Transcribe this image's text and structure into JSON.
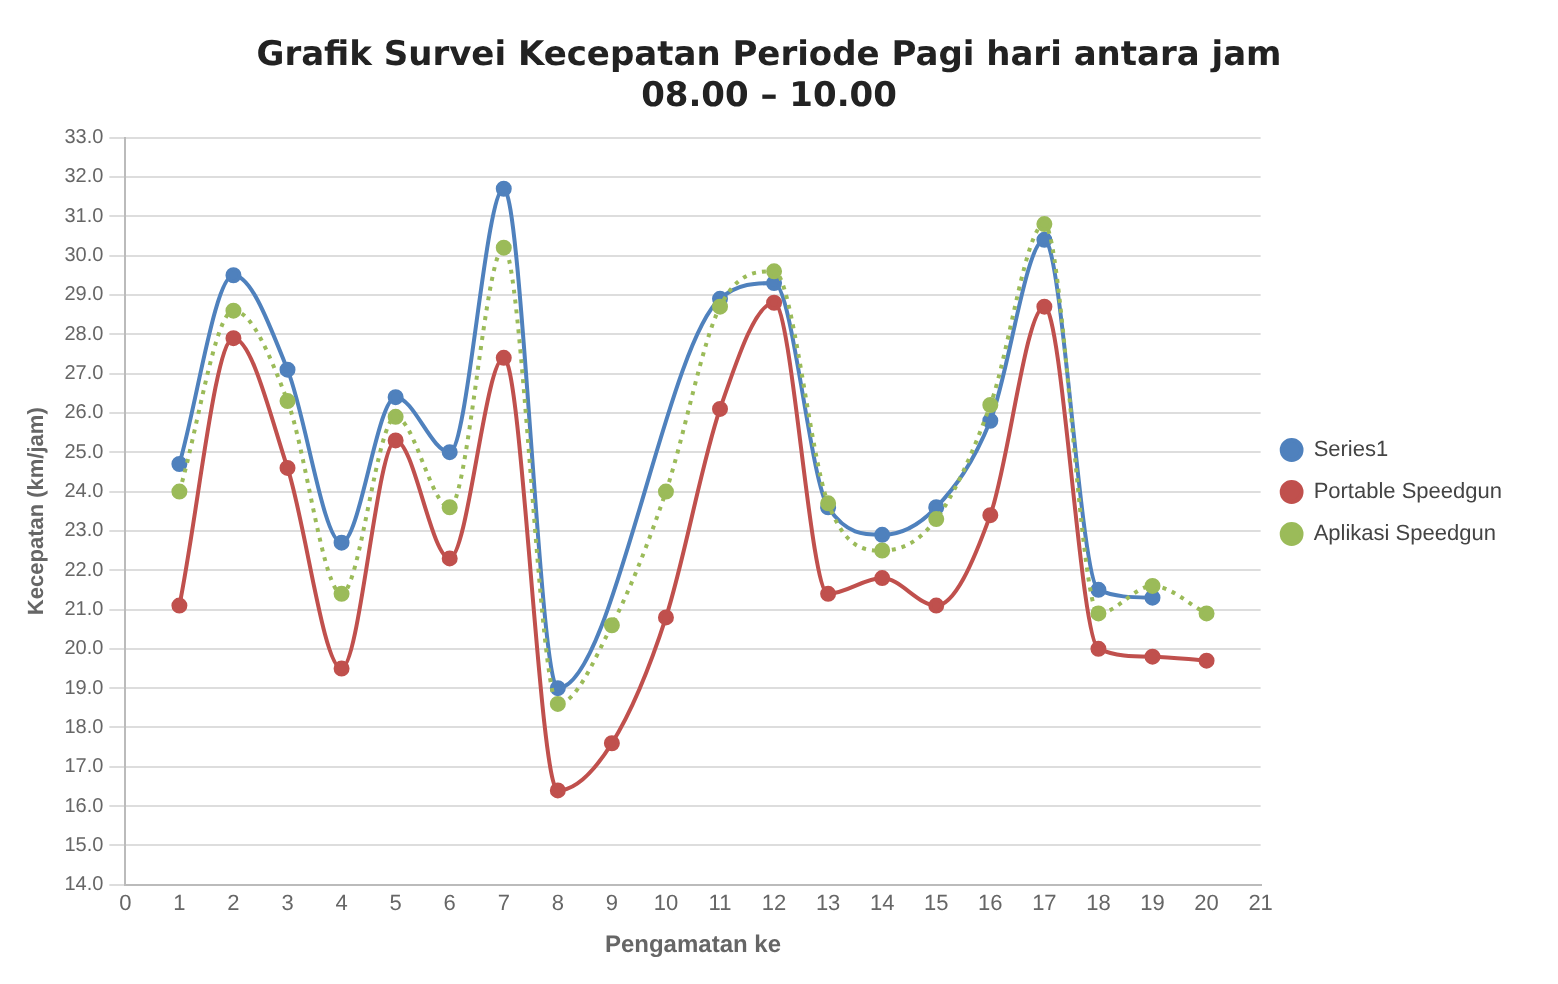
{
  "chart_data": {
    "type": "line",
    "title": [
      "Grafik Survei Kecepatan Periode Pagi hari antara jam",
      "08.00 – 10.00"
    ],
    "xlabel": "Pengamatan ke",
    "ylabel": "Kecepatan (km/jam)",
    "x": [
      1,
      2,
      3,
      4,
      5,
      6,
      7,
      8,
      9,
      10,
      11,
      12,
      13,
      14,
      15,
      16,
      17,
      18,
      19,
      20
    ],
    "series": [
      {
        "name": "Series1",
        "color": "#4f81bd",
        "line_style": "solid",
        "values": [
          24.7,
          29.5,
          27.1,
          22.7,
          26.4,
          25.0,
          31.7,
          19.0,
          null,
          null,
          28.9,
          29.3,
          23.6,
          22.9,
          23.6,
          25.8,
          30.4,
          21.5,
          21.3,
          null
        ]
      },
      {
        "name": "Portable Speedgun",
        "color": "#c0504d",
        "line_style": "solid",
        "values": [
          21.1,
          27.9,
          24.6,
          19.5,
          25.3,
          22.3,
          27.4,
          16.4,
          17.6,
          20.8,
          26.1,
          28.8,
          21.4,
          21.8,
          21.1,
          23.4,
          28.7,
          20.0,
          19.8,
          19.7
        ]
      },
      {
        "name": "Aplikasi Speedgun",
        "color": "#9bbb59",
        "line_style": "dotted",
        "values": [
          24.0,
          28.6,
          26.3,
          21.4,
          25.9,
          23.6,
          30.2,
          18.6,
          20.6,
          24.0,
          28.7,
          29.6,
          23.7,
          22.5,
          23.3,
          26.2,
          30.8,
          20.9,
          21.6,
          20.9
        ]
      }
    ],
    "xlim": [
      0,
      21
    ],
    "xticks": [
      0,
      1,
      2,
      3,
      4,
      5,
      6,
      7,
      8,
      9,
      10,
      11,
      12,
      13,
      14,
      15,
      16,
      17,
      18,
      19,
      20,
      21
    ],
    "ylim": [
      14,
      33
    ],
    "yticks": [
      {
        "value": 14,
        "label": "14.0"
      },
      {
        "value": 15,
        "label": "15.0"
      },
      {
        "value": 16,
        "label": "16.0"
      },
      {
        "value": 17,
        "label": "17.0"
      },
      {
        "value": 18,
        "label": "18.0"
      },
      {
        "value": 19,
        "label": "19.0"
      },
      {
        "value": 20,
        "label": "20.0"
      },
      {
        "value": 21,
        "label": "21.0"
      },
      {
        "value": 22,
        "label": "22.0"
      },
      {
        "value": 23,
        "label": "23.0"
      },
      {
        "value": 24,
        "label": "24.0"
      },
      {
        "value": 25,
        "label": "25.0"
      },
      {
        "value": 26,
        "label": "26.0"
      },
      {
        "value": 27,
        "label": "27.0"
      },
      {
        "value": 28,
        "label": "28.0"
      },
      {
        "value": 29,
        "label": "29.0"
      },
      {
        "value": 30,
        "label": "30.0"
      },
      {
        "value": 31,
        "label": "31.0"
      },
      {
        "value": 32,
        "label": "32.0"
      },
      {
        "value": 33,
        "label": "33.0"
      }
    ],
    "grid": "y",
    "legend": "right",
    "marker": "circle"
  }
}
